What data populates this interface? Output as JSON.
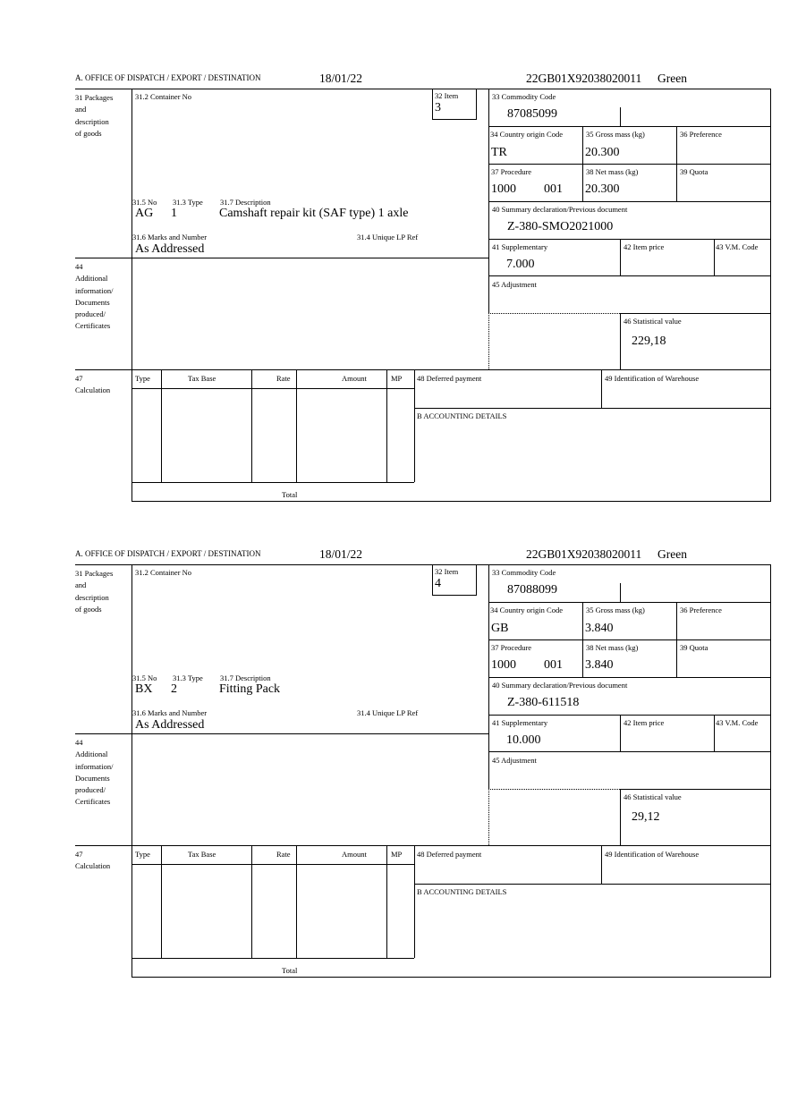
{
  "labels": {
    "office": "A.  OFFICE OF DISPATCH / EXPORT / DESTINATION",
    "packages": [
      "31 Packages",
      "and",
      "description",
      "of goods"
    ],
    "container_no": "31.2 Container No",
    "item": "32 Item",
    "no": "31.5 No",
    "type": "31.3 Type",
    "description": "31.7 Description",
    "marks": "31.6 Marks and Number",
    "unique_lp_ref": "31.4 Unique LP Ref",
    "commodity_code": "33 Commodity Code",
    "country_origin": "34 Country origin Code",
    "gross_mass": "35 Gross mass (kg)",
    "preference": "36 Preference",
    "procedure": "37 Procedure",
    "net_mass": "38 Net mass (kg)",
    "quota": "39 Quota",
    "summary_declaration": "40 Summary declaration/Previous document",
    "supplementary": "41 Supplementary",
    "item_price": "42 Item price",
    "vm_code": "43 V.M. Code",
    "adjustment": "45 Adjustment",
    "statistical_value": "46 Statistical value",
    "additional_info": [
      "44",
      "Additional",
      "information/",
      "Documents",
      "produced/",
      "Certificates"
    ],
    "calculation": [
      "47",
      "Calculation"
    ],
    "calc_columns": [
      "Type",
      "Tax Base",
      "Rate",
      "Amount",
      "MP"
    ],
    "total": "Total",
    "deferred_payment": "48 Deferred payment",
    "warehouse": "49 Identification of Warehouse",
    "accounting": "B ACCOUNTING DETAILS"
  },
  "items": [
    {
      "date": "18/01/22",
      "reference": "22GB01X92038020011",
      "route": "Green",
      "item_no": "3",
      "packages_no": "AG",
      "packages_type": "1",
      "description": "Camshaft repair kit (SAF type) 1 axle",
      "marks": "As Addressed",
      "commodity_code": "87085099",
      "country_origin": "TR",
      "gross_mass": "20.300",
      "procedure": "1000",
      "procedure_extra": "001",
      "net_mass": "20.300",
      "summary_declaration": "Z-380-SMO2021000",
      "supplementary": "7.000",
      "statistical_value": "229,18"
    },
    {
      "date": "18/01/22",
      "reference": "22GB01X92038020011",
      "route": "Green",
      "item_no": "4",
      "packages_no": "BX",
      "packages_type": "2",
      "description": "Fitting Pack",
      "marks": "As Addressed",
      "commodity_code": "87088099",
      "country_origin": "GB",
      "gross_mass": "3.840",
      "procedure": "1000",
      "procedure_extra": "001",
      "net_mass": "3.840",
      "summary_declaration": "Z-380-611518",
      "supplementary": "10.000",
      "statistical_value": "29,12"
    }
  ]
}
